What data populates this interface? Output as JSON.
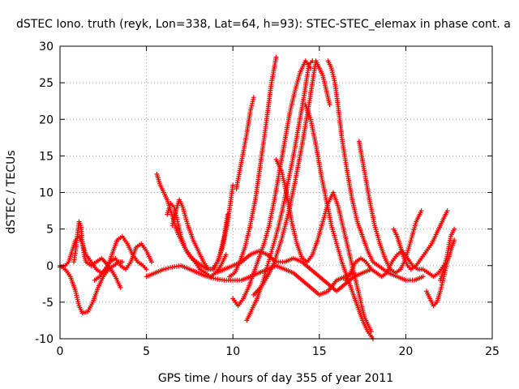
{
  "chart_data": {
    "type": "scatter",
    "title": "dSTEC Iono. truth (reyk, Lon=338, Lat=64, h=93): STEC-STEC_elemax in phase cont. a",
    "xlabel": "GPS time / hours of day 355 of year 2011",
    "ylabel": "dSTEC  / TECUs",
    "xlim": [
      0,
      25
    ],
    "ylim": [
      -10,
      30
    ],
    "xticks": [
      0,
      5,
      10,
      15,
      20,
      25
    ],
    "yticks": [
      -10,
      -5,
      0,
      5,
      10,
      15,
      20,
      25,
      30
    ],
    "grid": true,
    "marker": "+",
    "color": "#ff0000",
    "series": [
      {
        "x": [
          0.0,
          0.3,
          0.6,
          0.9,
          1.1,
          1.3,
          1.6,
          1.9,
          2.2,
          2.5,
          2.8,
          3.1,
          3.4,
          3.6
        ],
        "y": [
          0.0,
          -0.5,
          -1.5,
          -3.5,
          -5.5,
          -6.5,
          -6.3,
          -5.0,
          -3.0,
          -1.5,
          -0.5,
          0.0,
          0.5,
          0.5
        ]
      },
      {
        "x": [
          0.0,
          0.3,
          0.5,
          0.7,
          0.9,
          1.1,
          1.3,
          1.5,
          1.8,
          2.1,
          2.4,
          2.7,
          3.0,
          3.3,
          3.6,
          3.9,
          4.2,
          4.5,
          4.8,
          5.0
        ],
        "y": [
          -0.2,
          0.0,
          0.5,
          2.0,
          3.5,
          4.0,
          3.0,
          1.5,
          0.5,
          -0.5,
          -1.0,
          -0.5,
          1.5,
          3.5,
          4.0,
          3.0,
          1.5,
          0.5,
          0.0,
          -0.5
        ]
      },
      {
        "x": [
          0.8,
          0.9,
          1.0,
          1.1,
          1.2,
          1.3,
          1.4,
          1.5,
          1.8,
          2.1,
          2.4,
          2.8,
          3.2,
          3.5
        ],
        "y": [
          0.5,
          2.0,
          4.0,
          6.0,
          5.5,
          3.0,
          1.5,
          0.5,
          0.0,
          0.5,
          1.0,
          0.0,
          -1.5,
          -3.0
        ]
      },
      {
        "x": [
          2.0,
          2.3,
          2.6,
          2.9,
          3.2,
          3.5,
          3.8,
          4.1,
          4.4,
          4.7,
          5.0,
          5.3
        ],
        "y": [
          -2.0,
          -1.5,
          -0.5,
          0.5,
          1.0,
          0.0,
          -0.5,
          0.5,
          2.5,
          3.0,
          2.0,
          0.5
        ]
      },
      {
        "x": [
          5.6,
          5.8,
          6.0,
          6.2,
          6.4,
          6.6,
          6.8,
          7.0,
          7.2,
          7.5,
          7.8,
          8.1,
          8.4,
          8.7,
          9.0,
          9.3,
          9.6
        ],
        "y": [
          12.5,
          11.0,
          10.0,
          9.0,
          7.5,
          6.0,
          4.5,
          3.5,
          2.5,
          1.5,
          0.5,
          -0.5,
          -1.0,
          -1.5,
          -1.0,
          0.0,
          1.5
        ]
      },
      {
        "x": [
          6.2,
          6.4,
          6.6,
          6.8,
          7.0,
          7.3,
          7.6,
          7.9,
          8.2,
          8.5,
          8.8,
          9.1,
          9.4,
          9.7,
          10.0
        ],
        "y": [
          7.0,
          8.5,
          8.0,
          6.0,
          4.0,
          2.0,
          1.0,
          0.5,
          0.0,
          -0.5,
          -0.5,
          0.5,
          2.5,
          6.0,
          11.0
        ]
      },
      {
        "x": [
          6.5,
          6.7,
          6.9,
          7.1,
          7.4,
          7.7,
          8.0,
          8.3,
          8.6,
          8.9,
          9.2,
          9.5,
          9.7
        ],
        "y": [
          5.5,
          7.5,
          9.0,
          8.0,
          5.5,
          3.5,
          2.0,
          0.5,
          -0.5,
          -0.5,
          1.0,
          4.0,
          7.0
        ]
      },
      {
        "x": [
          5.0,
          5.5,
          6.0,
          6.5,
          7.0,
          7.5,
          8.0,
          8.5,
          9.0,
          9.5,
          10.0,
          10.5,
          11.0,
          11.5,
          12.0,
          12.5,
          13.0,
          13.5,
          14.0,
          14.5,
          15.0,
          15.5,
          16.0,
          16.5,
          17.0
        ],
        "y": [
          -1.5,
          -1.0,
          -0.5,
          -0.2,
          0.0,
          -0.5,
          -1.0,
          -1.5,
          -1.8,
          -2.0,
          -2.0,
          -2.0,
          -1.5,
          -1.0,
          -0.5,
          0.0,
          -0.5,
          -1.0,
          -2.0,
          -3.0,
          -4.0,
          -3.5,
          -2.0,
          -1.5,
          -1.0
        ]
      },
      {
        "x": [
          9.0,
          9.5,
          10.0,
          10.5,
          11.0,
          11.5,
          12.0,
          12.5,
          13.0,
          13.5,
          14.0,
          14.5,
          15.0,
          15.5,
          16.0,
          16.5,
          17.0,
          17.5,
          18.0
        ],
        "y": [
          -1.0,
          -0.5,
          0.0,
          0.5,
          1.5,
          2.0,
          1.5,
          0.5,
          0.5,
          1.0,
          0.5,
          -0.5,
          -1.5,
          -2.5,
          -3.5,
          -2.5,
          -1.5,
          -1.0,
          -0.5
        ]
      },
      {
        "x": [
          10.0,
          10.3,
          10.6,
          10.9,
          11.2,
          11.5,
          11.8,
          12.1,
          12.4,
          12.7,
          13.0,
          13.3,
          13.6,
          13.9,
          14.2,
          14.5
        ],
        "y": [
          -4.5,
          -5.5,
          -4.5,
          -3.0,
          -1.0,
          1.0,
          3.0,
          5.5,
          9.0,
          13.0,
          17.0,
          21.0,
          24.0,
          26.5,
          28.0,
          27.0
        ]
      },
      {
        "x": [
          10.8,
          11.1,
          11.4,
          11.7,
          12.0,
          12.3,
          12.6,
          12.9,
          13.2,
          13.5,
          13.8,
          14.1,
          14.4,
          14.6
        ],
        "y": [
          -7.5,
          -6.0,
          -4.5,
          -2.5,
          0.0,
          2.5,
          5.0,
          8.0,
          11.5,
          15.0,
          19.0,
          23.0,
          27.5,
          28.0
        ]
      },
      {
        "x": [
          10.2,
          10.4,
          10.6,
          10.8,
          11.0,
          11.2
        ],
        "y": [
          10.5,
          13.0,
          15.5,
          18.0,
          21.0,
          23.0
        ]
      },
      {
        "x": [
          9.8,
          10.1,
          10.4,
          10.7,
          11.0,
          11.3,
          11.6,
          11.9,
          12.2,
          12.5
        ],
        "y": [
          -1.5,
          -1.0,
          0.5,
          2.5,
          5.5,
          9.0,
          14.0,
          19.0,
          24.5,
          28.5
        ]
      },
      {
        "x": [
          11.2,
          11.6,
          12.0,
          12.4,
          12.8,
          13.2,
          13.6,
          14.0,
          14.4,
          14.8,
          15.2,
          15.6
        ],
        "y": [
          -4.0,
          -3.0,
          -1.5,
          0.5,
          3.5,
          7.0,
          11.5,
          16.5,
          22.0,
          28.0,
          26.0,
          22.0
        ]
      },
      {
        "x": [
          12.5,
          12.8,
          13.1,
          13.4,
          13.7,
          14.0,
          14.3,
          14.6,
          14.9,
          15.2,
          15.5,
          15.8,
          16.1,
          16.4,
          16.7,
          17.0,
          17.3,
          17.6,
          18.0
        ],
        "y": [
          14.5,
          13.0,
          10.0,
          6.0,
          3.0,
          1.0,
          0.5,
          1.5,
          3.5,
          6.0,
          8.5,
          10.0,
          8.0,
          5.0,
          2.0,
          -1.0,
          -4.0,
          -7.0,
          -9.0
        ]
      },
      {
        "x": [
          14.2,
          14.5,
          14.8,
          15.1,
          15.4,
          15.7,
          16.0,
          16.3,
          16.6,
          16.9,
          17.2,
          17.5,
          17.8,
          18.1
        ],
        "y": [
          22.0,
          20.0,
          16.5,
          12.5,
          9.0,
          5.5,
          3.0,
          0.5,
          -1.5,
          -3.5,
          -5.5,
          -7.5,
          -9.0,
          -10.0
        ]
      },
      {
        "x": [
          15.5,
          15.7,
          15.9,
          16.1,
          16.3,
          16.6,
          16.9,
          17.2,
          17.5,
          17.8,
          18.1,
          18.4,
          18.7,
          19.0,
          19.5,
          20.0,
          20.5,
          21.0
        ],
        "y": [
          28.0,
          27.0,
          25.0,
          21.5,
          17.5,
          13.0,
          9.0,
          6.0,
          4.0,
          2.0,
          0.5,
          0.0,
          -0.5,
          -1.0,
          -1.5,
          -2.0,
          -2.0,
          -1.5
        ]
      },
      {
        "x": [
          16.5,
          16.8,
          17.1,
          17.4,
          17.7,
          18.0,
          18.3,
          18.6,
          18.9,
          19.2,
          19.5,
          19.8,
          20.1,
          20.4,
          20.7,
          21.0,
          21.3,
          21.6,
          21.9,
          22.2
        ],
        "y": [
          -2.0,
          -1.0,
          0.5,
          1.0,
          0.5,
          -0.5,
          -1.0,
          -1.5,
          -1.0,
          0.5,
          1.5,
          2.0,
          1.0,
          0.0,
          -0.5,
          -0.5,
          -1.0,
          -1.5,
          -1.0,
          0.0
        ]
      },
      {
        "x": [
          17.3,
          17.6,
          17.9,
          18.2,
          18.5,
          18.8,
          19.1,
          19.4,
          19.7,
          20.0,
          20.3,
          20.6,
          20.9
        ],
        "y": [
          17.0,
          13.0,
          9.0,
          5.5,
          3.0,
          1.0,
          -0.5,
          -1.0,
          -0.5,
          1.0,
          3.5,
          6.0,
          7.5
        ]
      },
      {
        "x": [
          19.3,
          19.5,
          19.7,
          19.9,
          20.1,
          20.3,
          20.6,
          20.9,
          21.2,
          21.5,
          21.8,
          22.1,
          22.4
        ],
        "y": [
          5.0,
          4.0,
          2.5,
          1.0,
          0.0,
          -0.5,
          0.0,
          1.0,
          2.0,
          3.0,
          4.5,
          6.0,
          7.5
        ]
      },
      {
        "x": [
          21.2,
          21.4,
          21.6,
          21.8,
          22.0,
          22.2,
          22.4,
          22.6,
          22.8
        ],
        "y": [
          -3.5,
          -4.5,
          -5.5,
          -5.0,
          -3.5,
          -1.5,
          0.5,
          2.0,
          3.5
        ]
      },
      {
        "x": [
          22.0,
          22.2,
          22.4,
          22.6,
          22.8
        ],
        "y": [
          -2.0,
          -0.5,
          1.5,
          4.0,
          5.0
        ]
      }
    ]
  }
}
